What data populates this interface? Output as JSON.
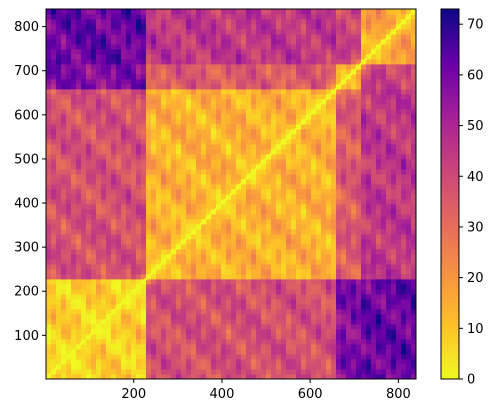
{
  "chart_data": {
    "type": "heatmap",
    "title": "",
    "xlabel": "",
    "ylabel": "",
    "xlim": [
      1,
      840
    ],
    "ylim": [
      1,
      840
    ],
    "x_ticks": [
      200,
      400,
      600,
      800
    ],
    "y_ticks": [
      100,
      200,
      300,
      400,
      500,
      600,
      700,
      800
    ],
    "diagonal": "bright line from (1,1) to (840,840), value 0",
    "block_boundaries": [
      230,
      660,
      720
    ],
    "block_mean_values": [
      [
        8,
        38,
        58,
        62
      ],
      [
        38,
        14,
        35,
        45
      ],
      [
        58,
        35,
        20,
        42
      ],
      [
        62,
        45,
        42,
        18
      ]
    ],
    "colorbar": {
      "colormap": "plasma_r",
      "min": 0,
      "max": 73,
      "ticks": [
        0,
        10,
        20,
        30,
        40,
        50,
        60,
        70
      ]
    },
    "grid": false,
    "legend": "none"
  }
}
